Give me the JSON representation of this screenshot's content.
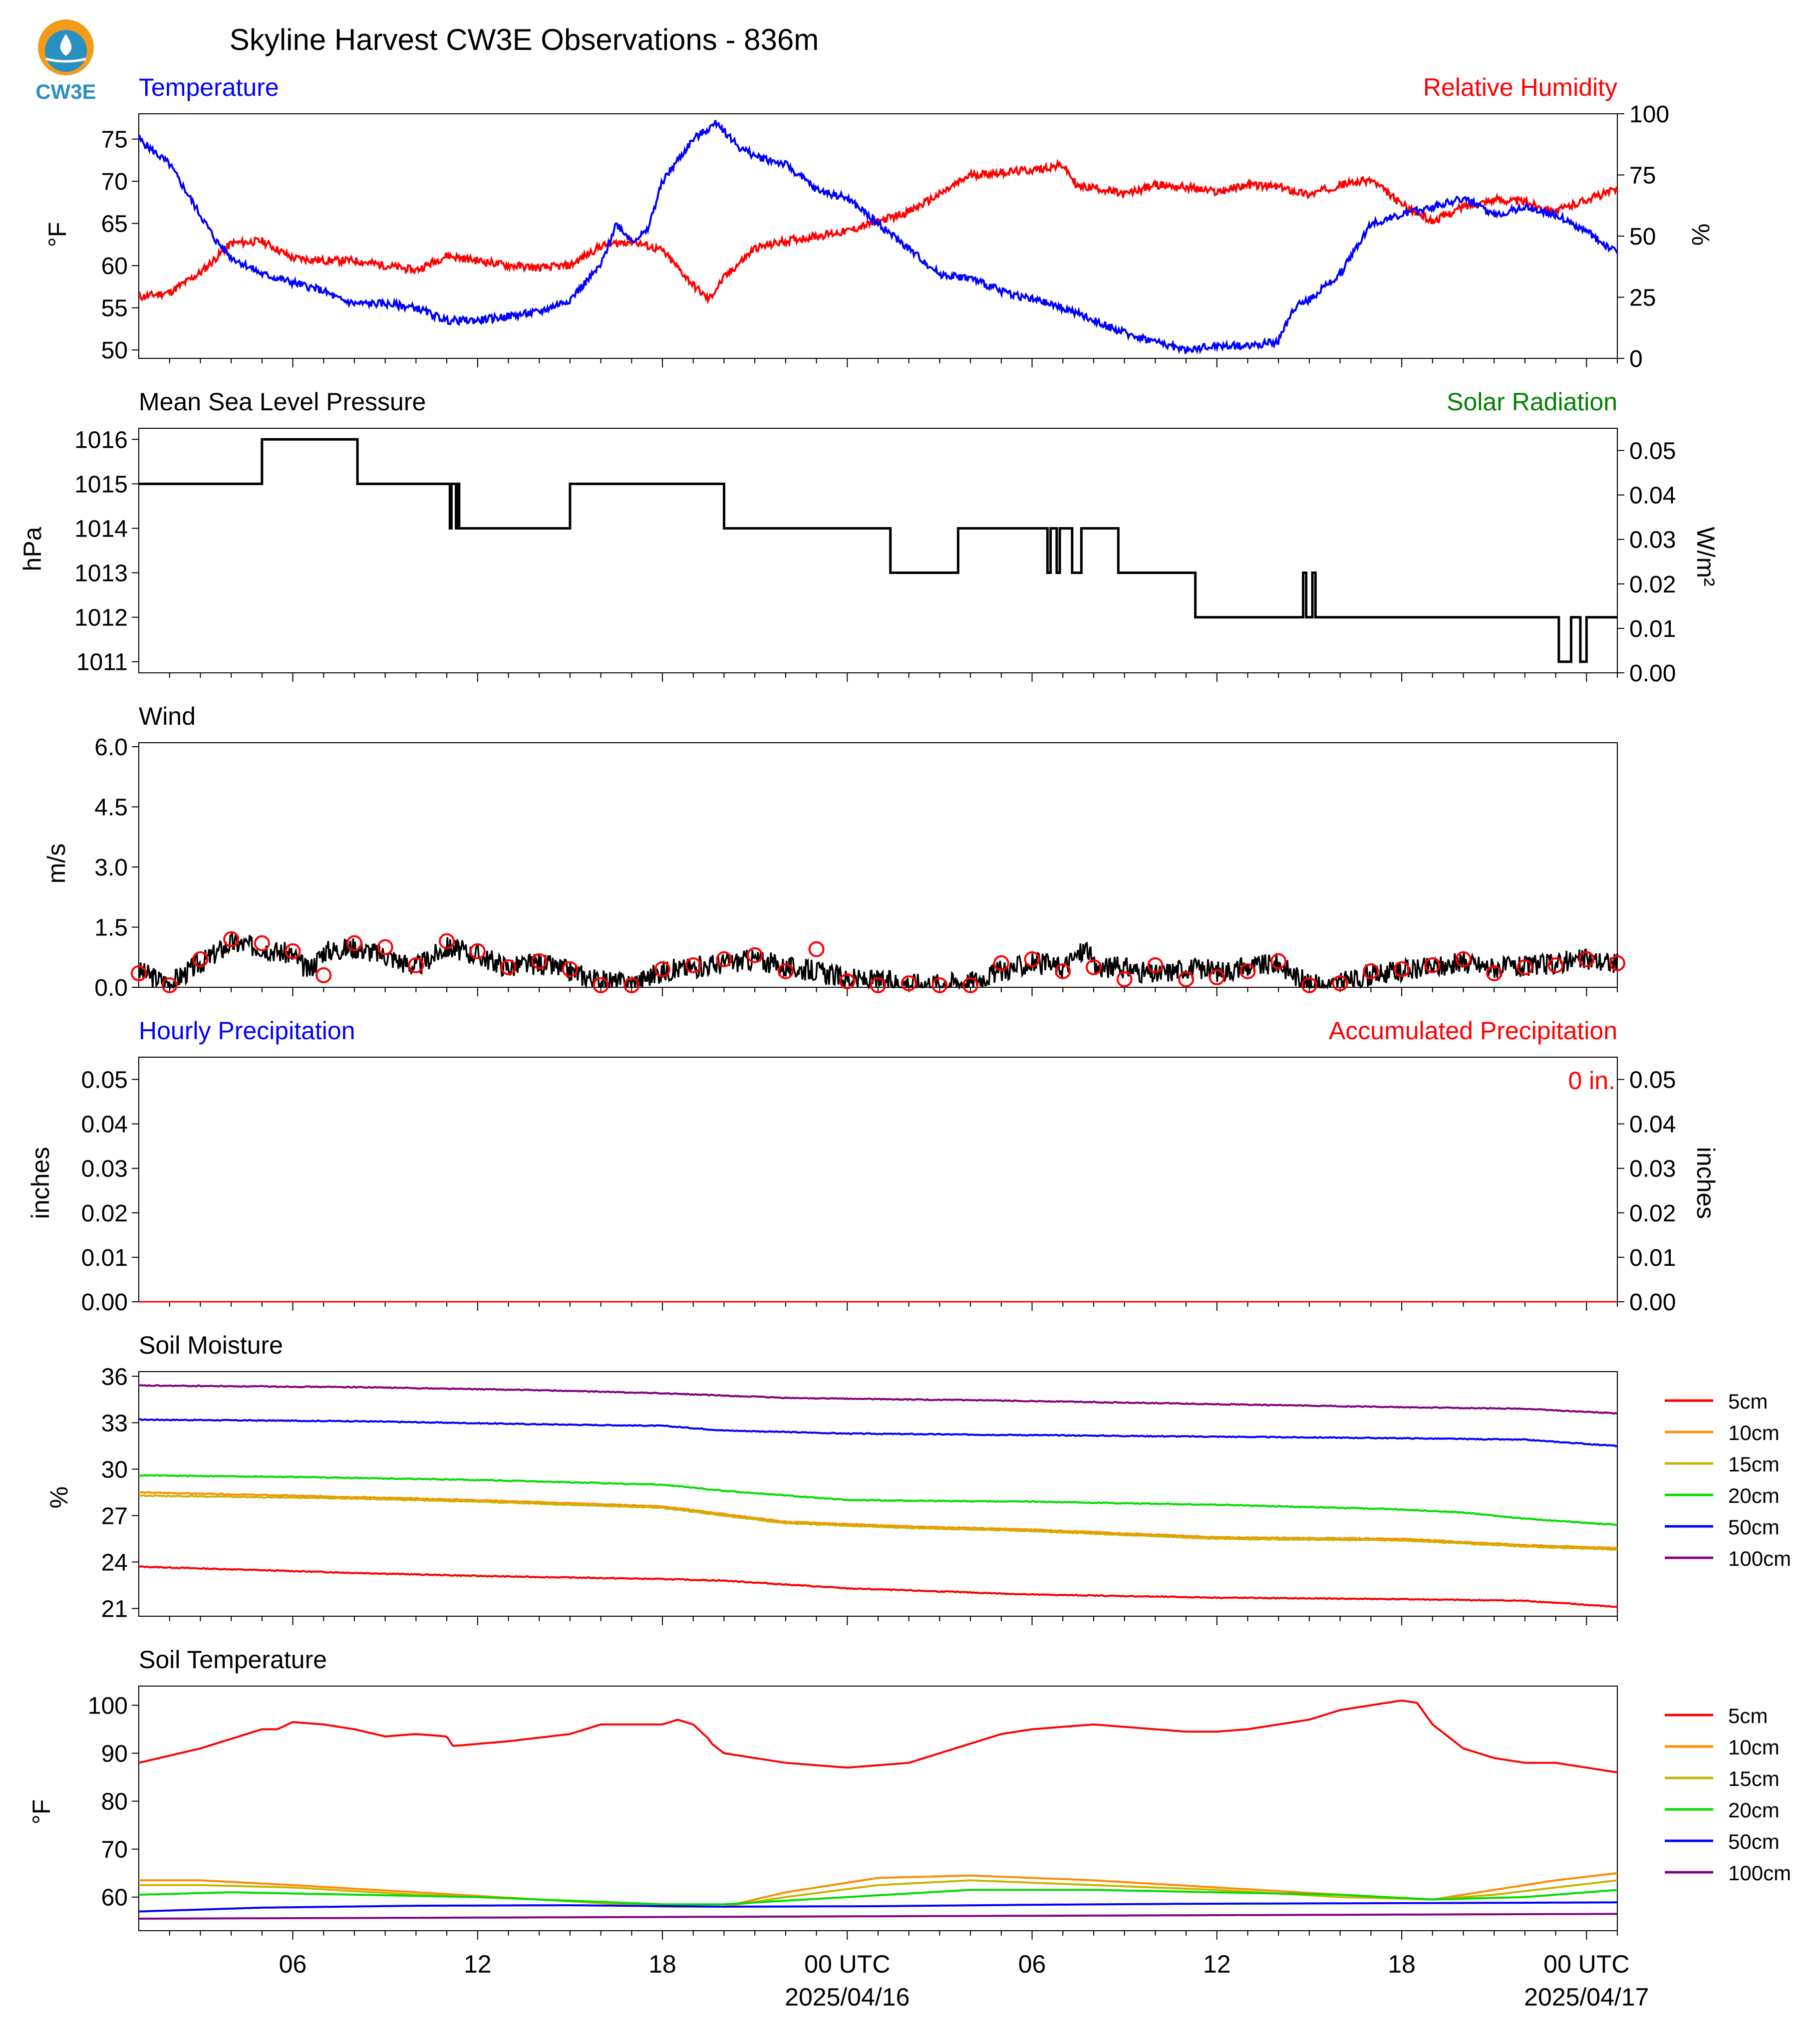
{
  "title": "Skyline Harvest CW3E Observations - 836m",
  "logo_text": "CW3E",
  "x_axis": {
    "tick_labels": [
      "06",
      "12",
      "18",
      "00 UTC",
      "06",
      "12",
      "18",
      "00 UTC"
    ],
    "date_labels": [
      "2025/04/16",
      "2025/04/17"
    ],
    "tick_hours": [
      6,
      12,
      18,
      24,
      30,
      36,
      42,
      48
    ],
    "range_hours": [
      1,
      49
    ]
  },
  "colors": {
    "blue": "#0000ff",
    "red": "#ff0000",
    "green": "#008000",
    "black": "#000000"
  },
  "soil_colors": [
    "#ff0000",
    "#ff8c00",
    "#c8b400",
    "#00dd00",
    "#0000ff",
    "#800080"
  ],
  "chart_data": [
    {
      "type": "line",
      "panel": "temperature_humidity",
      "left_label": "Temperature",
      "right_label": "Relative Humidity",
      "ylabel_left": "°F",
      "ylabel_right": "%",
      "ylim_left": [
        49,
        78
      ],
      "yticks_left": [
        "75",
        "70",
        "65",
        "60",
        "55",
        "50"
      ],
      "ylim_right": [
        0,
        100
      ],
      "yticks_right": [
        "100",
        "75",
        "50",
        "25",
        "0"
      ],
      "series": [
        {
          "name": "Temperature",
          "axis": "left",
          "color": "#0000ff",
          "x": [
            1,
            2,
            3,
            3.5,
            4,
            4.5,
            5,
            6,
            7,
            7.5,
            8,
            9,
            10,
            11,
            12,
            13,
            14,
            15,
            16,
            16.5,
            17,
            17.5,
            18,
            19,
            19.8,
            20,
            20.5,
            21,
            22,
            23,
            24,
            25,
            26,
            27,
            28,
            29,
            30,
            31,
            32,
            33,
            34,
            35,
            36,
            37,
            38,
            38.5,
            39,
            40,
            41,
            42,
            43,
            44,
            45,
            46,
            47,
            48,
            49
          ],
          "values": [
            75,
            72,
            66,
            63,
            61,
            60,
            59,
            58,
            57,
            56,
            55.5,
            55.5,
            55,
            53.5,
            53.5,
            54,
            54.5,
            56,
            60,
            65,
            63,
            64,
            70,
            75,
            77,
            76,
            74,
            73,
            72,
            69,
            68,
            65,
            62,
            59,
            58.5,
            57,
            56,
            55,
            53.5,
            52,
            51,
            50,
            50.5,
            50.5,
            51,
            55,
            56,
            59,
            65,
            66,
            67,
            68,
            66,
            67,
            66,
            64,
            61.5
          ]
        },
        {
          "name": "Relative Humidity",
          "axis": "right",
          "color": "#ff0000",
          "x": [
            1,
            2,
            3,
            4,
            5,
            6,
            7,
            8,
            9,
            10,
            11,
            12,
            13,
            14,
            15,
            16,
            17,
            18,
            19,
            19.5,
            20,
            21,
            22,
            23,
            24,
            25,
            26,
            27,
            28,
            29,
            30,
            31,
            31.5,
            32,
            33,
            34,
            35,
            36,
            37,
            38,
            39,
            40,
            41,
            42,
            43,
            44,
            45,
            46,
            47,
            48,
            49
          ],
          "values": [
            25,
            27,
            35,
            47,
            48,
            41,
            40,
            40,
            38,
            36,
            42,
            40,
            38,
            37,
            38,
            46,
            48,
            44,
            30,
            24,
            33,
            45,
            48,
            50,
            52,
            56,
            60,
            67,
            75,
            76,
            77,
            79,
            70,
            70,
            67,
            71,
            70,
            68,
            71,
            70,
            67,
            71,
            73,
            63,
            56,
            62,
            65,
            64,
            60,
            65,
            69
          ]
        }
      ]
    },
    {
      "type": "line",
      "panel": "pressure",
      "left_label": "Mean Sea Level Pressure",
      "right_label": "Solar Radiation",
      "ylabel_left": "hPa",
      "ylabel_right": "W/m²",
      "ylim_left": [
        1010.75,
        1016.25
      ],
      "yticks_left": [
        "1016",
        "1015",
        "1014",
        "1013",
        "1012",
        "1011"
      ],
      "ylim_right": [
        0,
        0.055
      ],
      "yticks_right": [
        "0.05",
        "0.04",
        "0.03",
        "0.02",
        "0.01",
        "0.00"
      ],
      "series": [
        {
          "name": "Mean Sea Level Pressure",
          "color": "#000000",
          "step": true,
          "x": [
            1,
            5,
            8.1,
            11.1,
            11.15,
            11.3,
            11.35,
            11.4,
            15,
            15.2,
            20,
            25.4,
            27.6,
            30.5,
            30.6,
            30.8,
            30.9,
            31.3,
            31.6,
            32.8,
            35.3,
            38.8,
            38.9,
            39.1,
            39.2,
            47.1,
            47.5,
            47.8,
            48,
            49
          ],
          "values": [
            1015,
            1016,
            1015,
            1014,
            1015,
            1014,
            1015,
            1014,
            1015,
            1015,
            1014,
            1013,
            1014,
            1013,
            1014,
            1013,
            1014,
            1013,
            1014,
            1013,
            1012,
            1013,
            1012,
            1013,
            1012,
            1011,
            1012,
            1011,
            1012,
            1012
          ]
        }
      ]
    },
    {
      "type": "line",
      "panel": "wind",
      "left_label": "Wind",
      "ylabel_left": "m/s",
      "ylim_left": [
        0,
        6.1
      ],
      "yticks_left": [
        "6.0",
        "4.5",
        "3.0",
        "1.5",
        "0.0"
      ],
      "series": [
        {
          "name": "Wind",
          "color": "#000000",
          "noisy": true,
          "x": [
            1,
            2,
            3,
            4,
            5,
            6,
            6.5,
            7,
            8,
            9,
            10,
            11,
            12,
            13,
            14,
            15,
            16,
            17,
            18,
            19,
            20,
            21,
            22,
            23,
            24,
            25,
            26,
            27,
            28,
            29,
            30,
            31,
            31.8,
            32,
            33,
            34,
            35,
            36,
            37,
            38,
            39,
            39.5,
            40,
            41,
            42,
            43,
            44,
            45,
            46,
            47,
            48,
            49
          ],
          "values": [
            0.4,
            0.1,
            0.6,
            1.1,
            1.0,
            0.8,
            0.4,
            0.9,
            1.0,
            0.8,
            0.5,
            1.0,
            0.8,
            0.5,
            0.6,
            0.4,
            0.15,
            0.1,
            0.4,
            0.5,
            0.6,
            0.7,
            0.5,
            0.4,
            0.2,
            0.15,
            0.1,
            0.1,
            0.15,
            0.4,
            0.6,
            0.5,
            1.0,
            0.5,
            0.5,
            0.3,
            0.5,
            0.4,
            0.5,
            0.6,
            0.05,
            0.05,
            0.1,
            0.3,
            0.4,
            0.5,
            0.6,
            0.5,
            0.5,
            0.6,
            0.7,
            0.6
          ]
        },
        {
          "name": "Wind markers",
          "color": "#ff0000",
          "marker": "circle",
          "x": [
            1,
            2,
            3,
            4,
            5,
            6,
            7,
            8,
            9,
            10,
            11,
            12,
            13,
            14,
            15,
            16,
            17,
            18,
            19,
            20,
            21,
            22,
            23,
            24,
            25,
            26,
            27,
            28,
            29,
            30,
            31,
            32,
            33,
            34,
            35,
            36,
            37,
            38,
            39,
            40,
            41,
            42,
            43,
            44,
            45,
            46,
            47,
            48,
            49
          ],
          "values": [
            0.35,
            0.05,
            0.7,
            1.2,
            1.1,
            0.9,
            0.3,
            1.1,
            1.0,
            0.55,
            1.15,
            0.9,
            0.5,
            0.65,
            0.45,
            0.05,
            0.05,
            0.45,
            0.55,
            0.7,
            0.8,
            0.4,
            0.95,
            0.15,
            0.05,
            0.1,
            0.05,
            0.05,
            0.6,
            0.7,
            0.4,
            0.5,
            0.2,
            0.55,
            0.2,
            0.25,
            0.4,
            0.65,
            0.05,
            0.1,
            0.4,
            0.45,
            0.55,
            0.7,
            0.35,
            0.5,
            0.55,
            0.7,
            0.6
          ]
        }
      ]
    },
    {
      "type": "line",
      "panel": "precipitation",
      "left_label": "Hourly Precipitation",
      "right_label": "Accumulated Precipitation",
      "accum_text": "0 in.",
      "ylabel_left": "inches",
      "ylabel_right": "inches",
      "ylim_left": [
        0,
        0.055
      ],
      "yticks_left": [
        "0.05",
        "0.04",
        "0.03",
        "0.02",
        "0.01",
        "0.00"
      ],
      "yticks_right": [
        "0.05",
        "0.04",
        "0.03",
        "0.02",
        "0.01",
        "0.00"
      ],
      "series": [
        {
          "name": "Hourly Precipitation",
          "color": "#ff0000",
          "x": [
            1,
            49
          ],
          "values": [
            0,
            0
          ]
        }
      ]
    },
    {
      "type": "line",
      "panel": "soil_moisture",
      "left_label": "Soil Moisture",
      "ylabel_left": "%",
      "ylim_left": [
        20.5,
        36.3
      ],
      "yticks_left": [
        "36",
        "33",
        "30",
        "27",
        "24",
        "21"
      ],
      "legend": [
        "5cm",
        "10cm",
        "15cm",
        "20cm",
        "50cm",
        "100cm"
      ],
      "series": [
        {
          "name": "5cm",
          "x": [
            1,
            8,
            12,
            18,
            20,
            24,
            30,
            36,
            42,
            46,
            49
          ],
          "values": [
            23.7,
            23.3,
            23.1,
            22.9,
            22.8,
            22.3,
            21.9,
            21.7,
            21.6,
            21.5,
            21.1
          ]
        },
        {
          "name": "10cm",
          "x": [
            1,
            8,
            12,
            18,
            20,
            22,
            26,
            30,
            36,
            42,
            46,
            49
          ],
          "values": [
            28.5,
            28.2,
            28.0,
            27.6,
            27.1,
            26.6,
            26.3,
            26.1,
            25.6,
            25.5,
            25.1,
            24.9
          ]
        },
        {
          "name": "15cm",
          "x": [
            1,
            8,
            12,
            18,
            20,
            22,
            26,
            30,
            36,
            42,
            46,
            49
          ],
          "values": [
            28.3,
            28.1,
            27.9,
            27.5,
            27.0,
            26.5,
            26.2,
            26.0,
            25.5,
            25.4,
            25.0,
            24.8
          ]
        },
        {
          "name": "20cm",
          "x": [
            1,
            6,
            12,
            18,
            20,
            24,
            30,
            36,
            42,
            44,
            46,
            49
          ],
          "values": [
            29.6,
            29.5,
            29.3,
            29.0,
            28.6,
            28.0,
            27.9,
            27.7,
            27.4,
            27.2,
            26.8,
            26.4
          ]
        },
        {
          "name": "50cm",
          "x": [
            1,
            8,
            14,
            18,
            20,
            24,
            30,
            36,
            42,
            46,
            49
          ],
          "values": [
            33.2,
            33.1,
            32.9,
            32.8,
            32.5,
            32.3,
            32.2,
            32.1,
            32.0,
            31.9,
            31.5
          ]
        },
        {
          "name": "100cm",
          "x": [
            1,
            8,
            14,
            18,
            22,
            30,
            36,
            42,
            46,
            49
          ],
          "values": [
            35.4,
            35.3,
            35.1,
            34.9,
            34.6,
            34.4,
            34.2,
            34.0,
            33.9,
            33.6
          ]
        }
      ]
    },
    {
      "type": "line",
      "panel": "soil_temperature",
      "left_label": "Soil Temperature",
      "ylabel_left": "°F",
      "ylim_left": [
        53,
        104
      ],
      "yticks_left": [
        "100",
        "90",
        "80",
        "70",
        "60"
      ],
      "legend": [
        "5cm",
        "10cm",
        "15cm",
        "20cm",
        "50cm",
        "100cm"
      ],
      "series": [
        {
          "name": "5cm",
          "x": [
            1,
            3,
            5,
            5.5,
            6,
            7,
            8,
            9,
            10,
            11,
            11.2,
            13,
            15,
            16,
            17,
            18,
            18.5,
            19,
            19.5,
            19.6,
            20,
            21,
            22,
            23,
            24,
            25,
            26,
            27,
            28,
            29,
            30,
            31,
            32,
            33,
            34,
            35,
            36,
            37,
            38,
            39,
            40,
            41,
            42,
            42.5,
            43,
            44,
            45,
            46,
            47,
            48,
            49
          ],
          "values": [
            88,
            91,
            95,
            95,
            96.5,
            96,
            95,
            93.5,
            94,
            93.5,
            91.5,
            92.5,
            94,
            96,
            96,
            96,
            97,
            96,
            93,
            92,
            90,
            89,
            88,
            87.5,
            87,
            87.5,
            88,
            90,
            92,
            94,
            95,
            95.5,
            96,
            95.5,
            95,
            94.5,
            94.5,
            95,
            96,
            97,
            99,
            100,
            101,
            100.5,
            96,
            91,
            89,
            88,
            88,
            87,
            86
          ]
        },
        {
          "name": "10cm",
          "x": [
            1,
            3,
            6,
            10,
            14,
            18,
            20,
            22,
            25,
            28,
            32,
            36,
            40,
            43,
            45,
            47,
            49
          ],
          "values": [
            63.5,
            63.5,
            62.5,
            61,
            59.5,
            58,
            58,
            61,
            64,
            64.5,
            63.5,
            62,
            60.5,
            59.5,
            61.5,
            63.5,
            65
          ]
        },
        {
          "name": "15cm",
          "x": [
            1,
            3,
            6,
            10,
            14,
            18,
            20,
            22,
            25,
            28,
            32,
            36,
            40,
            43,
            45,
            47,
            49
          ],
          "values": [
            62.5,
            62.5,
            62,
            60.5,
            59.5,
            58,
            58,
            60,
            62.5,
            63.5,
            62.5,
            61.5,
            60,
            59.5,
            60.5,
            62,
            63.5
          ]
        },
        {
          "name": "20cm",
          "x": [
            1,
            4,
            8,
            12,
            16,
            18,
            20,
            24,
            28,
            32,
            36,
            40,
            43,
            46,
            49
          ],
          "values": [
            60.5,
            61,
            60.5,
            60,
            59,
            58.5,
            58.5,
            60,
            61.5,
            61.5,
            61,
            60.5,
            59.5,
            60,
            61.5
          ]
        },
        {
          "name": "50cm",
          "x": [
            1,
            5,
            10,
            15,
            20,
            25,
            30,
            35,
            40,
            45,
            49
          ],
          "values": [
            57,
            57.8,
            58.2,
            58.3,
            58,
            58.1,
            58.4,
            58.6,
            58.7,
            58.8,
            58.9
          ]
        },
        {
          "name": "100cm",
          "x": [
            1,
            49
          ],
          "values": [
            55.5,
            56.5
          ]
        }
      ]
    }
  ]
}
